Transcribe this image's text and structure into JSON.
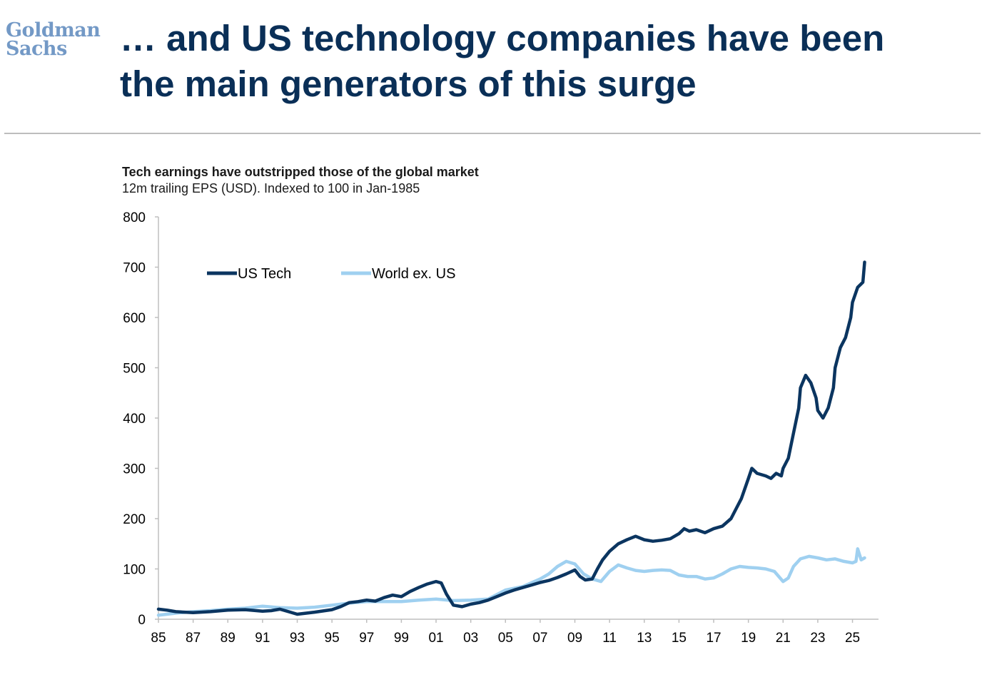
{
  "logo": {
    "line1": "Goldman",
    "line2": "Sachs"
  },
  "headline": {
    "line1": "… and US technology companies have been",
    "line2": "the main generators of this surge"
  },
  "colors": {
    "us_tech": "#0b3560",
    "world_ex_us": "#9fd0f0",
    "headline": "#0a2f57",
    "logo": "#7399c6"
  },
  "chart_data": {
    "type": "line",
    "title": "Tech earnings have outstripped those of the global market",
    "subtitle": "12m trailing EPS (USD). Indexed to 100 in Jan-1985",
    "xlabel": "",
    "ylabel": "",
    "xlim": [
      1985,
      2026.5
    ],
    "ylim": [
      0,
      800
    ],
    "yticks": [
      "0",
      "100",
      "200",
      "300",
      "400",
      "500",
      "600",
      "700",
      "800"
    ],
    "xticks": [
      "85",
      "87",
      "89",
      "91",
      "93",
      "95",
      "97",
      "99",
      "01",
      "03",
      "05",
      "07",
      "09",
      "11",
      "13",
      "15",
      "17",
      "19",
      "21",
      "23",
      "25"
    ],
    "legend_position": "top-left",
    "series": [
      {
        "name": "US Tech",
        "x": [
          1985,
          1985.5,
          1986,
          1987,
          1988,
          1989,
          1990,
          1991,
          1991.5,
          1992,
          1992.5,
          1993,
          1994,
          1995,
          1995.5,
          1996,
          1996.5,
          1997,
          1997.5,
          1998,
          1998.5,
          1999,
          1999.5,
          2000,
          2000.5,
          2001,
          2001.3,
          2001.6,
          2002,
          2002.5,
          2003,
          2003.5,
          2004,
          2004.5,
          2005,
          2005.5,
          2006,
          2006.5,
          2007,
          2007.5,
          2008,
          2008.5,
          2009,
          2009.3,
          2009.6,
          2010,
          2010.3,
          2010.6,
          2011,
          2011.5,
          2012,
          2012.5,
          2013,
          2013.5,
          2014,
          2014.5,
          2015,
          2015.3,
          2015.6,
          2016,
          2016.5,
          2017,
          2017.5,
          2018,
          2018.3,
          2018.6,
          2019,
          2019.2,
          2019.5,
          2020,
          2020.3,
          2020.6,
          2020.9,
          2021,
          2021.3,
          2021.6,
          2021.9,
          2022,
          2022.3,
          2022.6,
          2022.9,
          2023,
          2023.3,
          2023.6,
          2023.9,
          2024,
          2024.3,
          2024.6,
          2024.9,
          2025,
          2025.3,
          2025.6,
          2025.7
        ],
        "values": [
          20,
          18,
          15,
          13,
          15,
          18,
          19,
          16,
          17,
          20,
          15,
          10,
          14,
          19,
          25,
          33,
          35,
          38,
          36,
          43,
          48,
          45,
          55,
          63,
          70,
          75,
          72,
          50,
          28,
          25,
          30,
          33,
          38,
          45,
          52,
          58,
          63,
          68,
          73,
          77,
          83,
          90,
          98,
          85,
          78,
          80,
          100,
          118,
          135,
          150,
          158,
          165,
          158,
          155,
          157,
          160,
          170,
          180,
          175,
          178,
          172,
          180,
          185,
          200,
          220,
          240,
          280,
          300,
          290,
          285,
          280,
          290,
          285,
          300,
          320,
          370,
          420,
          460,
          485,
          470,
          440,
          415,
          400,
          420,
          460,
          500,
          540,
          560,
          600,
          630,
          660,
          670,
          710
        ]
      },
      {
        "name": "World ex. US",
        "x": [
          1985,
          1986,
          1987,
          1988,
          1989,
          1990,
          1991,
          1992,
          1993,
          1994,
          1995,
          1996,
          1997,
          1998,
          1999,
          2000,
          2001,
          2002,
          2003,
          2004,
          2005,
          2006,
          2007,
          2007.5,
          2008,
          2008.5,
          2009,
          2009.5,
          2010,
          2010.5,
          2011,
          2011.5,
          2012,
          2012.5,
          2013,
          2013.5,
          2014,
          2014.5,
          2015,
          2015.5,
          2016,
          2016.5,
          2017,
          2017.5,
          2018,
          2018.5,
          2019,
          2019.5,
          2020,
          2020.5,
          2021,
          2021.3,
          2021.6,
          2022,
          2022.5,
          2023,
          2023.5,
          2024,
          2024.5,
          2025,
          2025.2,
          2025.3,
          2025.5,
          2025.7
        ],
        "values": [
          8,
          12,
          15,
          17,
          20,
          22,
          26,
          23,
          22,
          24,
          28,
          32,
          35,
          35,
          35,
          38,
          40,
          37,
          38,
          40,
          58,
          65,
          80,
          90,
          105,
          115,
          110,
          90,
          80,
          75,
          95,
          108,
          102,
          97,
          95,
          97,
          98,
          97,
          88,
          85,
          85,
          80,
          82,
          90,
          100,
          105,
          103,
          102,
          100,
          95,
          75,
          82,
          105,
          120,
          125,
          122,
          118,
          120,
          115,
          112,
          115,
          140,
          118,
          122
        ]
      }
    ]
  }
}
